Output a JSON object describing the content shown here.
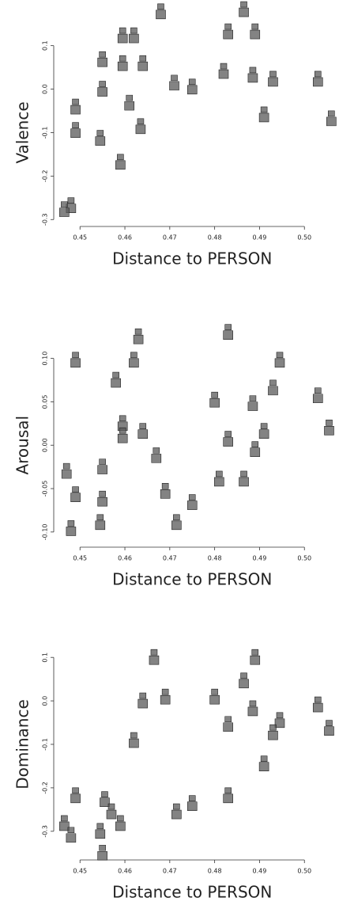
{
  "chart_data": [
    {
      "type": "scatter",
      "x_label": "Distance to PERSON",
      "y_label": "Valence",
      "color": "#5a5a5a",
      "x": [
        0.468,
        0.4595,
        0.462,
        0.455,
        0.4595,
        0.464,
        0.483,
        0.4865,
        0.489,
        0.455,
        0.461,
        0.449,
        0.449,
        0.4545,
        0.4635,
        0.459,
        0.448,
        0.4465,
        0.471,
        0.475,
        0.482,
        0.4885,
        0.493,
        0.491,
        0.503,
        0.506
      ],
      "y": [
        0.178,
        0.123,
        0.123,
        0.068,
        0.059,
        0.059,
        0.132,
        0.183,
        0.132,
        0.0,
        -0.032,
        -0.041,
        -0.095,
        -0.113,
        -0.086,
        -0.168,
        -0.268,
        -0.277,
        0.014,
        0.005,
        0.041,
        0.032,
        0.023,
        -0.059,
        0.023,
        -0.068
      ],
      "xlim": [
        0.4445,
        0.507
      ],
      "ylim": [
        -0.305,
        0.205
      ],
      "xticks": [
        0.45,
        0.46,
        0.47,
        0.48,
        0.49,
        {
          "value": 0.5,
          "label": "0.50"
        }
      ],
      "yticks": [
        -0.3,
        -0.2,
        -0.1,
        {
          "value": 0,
          "label": "0.0"
        },
        0.1
      ]
    },
    {
      "type": "scatter",
      "x_label": "Distance to PERSON",
      "y_label": "Arousal",
      "color": "#5a5a5a",
      "x": [
        0.463,
        0.462,
        0.458,
        0.449,
        0.483,
        0.4945,
        0.493,
        0.503,
        0.4885,
        0.48,
        0.5055,
        0.491,
        0.4595,
        0.464,
        0.4595,
        0.483,
        0.467,
        0.489,
        0.455,
        0.447,
        0.481,
        0.4865,
        0.469,
        0.449,
        0.455,
        0.475,
        0.4545,
        0.4715,
        0.448
      ],
      "y": [
        0.125,
        0.098,
        0.075,
        0.098,
        0.13,
        0.098,
        0.066,
        0.057,
        0.048,
        0.052,
        0.02,
        0.016,
        0.025,
        0.016,
        0.011,
        0.007,
        -0.012,
        -0.005,
        -0.025,
        -0.03,
        -0.039,
        -0.039,
        -0.053,
        -0.057,
        -0.062,
        -0.066,
        -0.089,
        -0.089,
        -0.096
      ],
      "xlim": [
        0.4445,
        0.507
      ],
      "ylim": [
        -0.112,
        0.148
      ],
      "xticks": [
        0.45,
        0.46,
        0.47,
        0.48,
        0.49,
        {
          "value": 0.5,
          "label": "0.50"
        }
      ],
      "yticks": [
        {
          "value": -0.1,
          "label": "-0.10"
        },
        -0.05,
        {
          "value": 0,
          "label": "0.00"
        },
        0.05,
        {
          "value": 0.1,
          "label": "0.10"
        }
      ]
    },
    {
      "type": "scatter",
      "x_label": "Distance to PERSON",
      "y_label": "Dominance",
      "color": "#5a5a5a",
      "x": [
        0.4665,
        0.489,
        0.4865,
        0.464,
        0.469,
        0.48,
        0.4885,
        0.483,
        0.4945,
        0.493,
        0.503,
        0.5055,
        0.462,
        0.491,
        0.483,
        0.475,
        0.4715,
        0.449,
        0.4555,
        0.457,
        0.4465,
        0.459,
        0.4545,
        0.448,
        0.455
      ],
      "y": [
        0.1,
        0.1,
        0.046,
        0.0,
        0.009,
        0.009,
        -0.018,
        -0.054,
        -0.045,
        -0.073,
        -0.009,
        -0.063,
        -0.091,
        -0.145,
        -0.218,
        -0.236,
        -0.255,
        -0.218,
        -0.227,
        -0.255,
        -0.282,
        -0.282,
        -0.3,
        -0.309,
        -0.35
      ],
      "xlim": [
        0.4445,
        0.507
      ],
      "ylim": [
        -0.355,
        0.155
      ],
      "xticks": [
        0.45,
        0.46,
        0.47,
        0.48,
        0.49,
        {
          "value": 0.5,
          "label": "0.50"
        }
      ],
      "yticks": [
        -0.3,
        -0.2,
        -0.1,
        {
          "value": 0,
          "label": "0.0"
        },
        0.1
      ]
    }
  ]
}
